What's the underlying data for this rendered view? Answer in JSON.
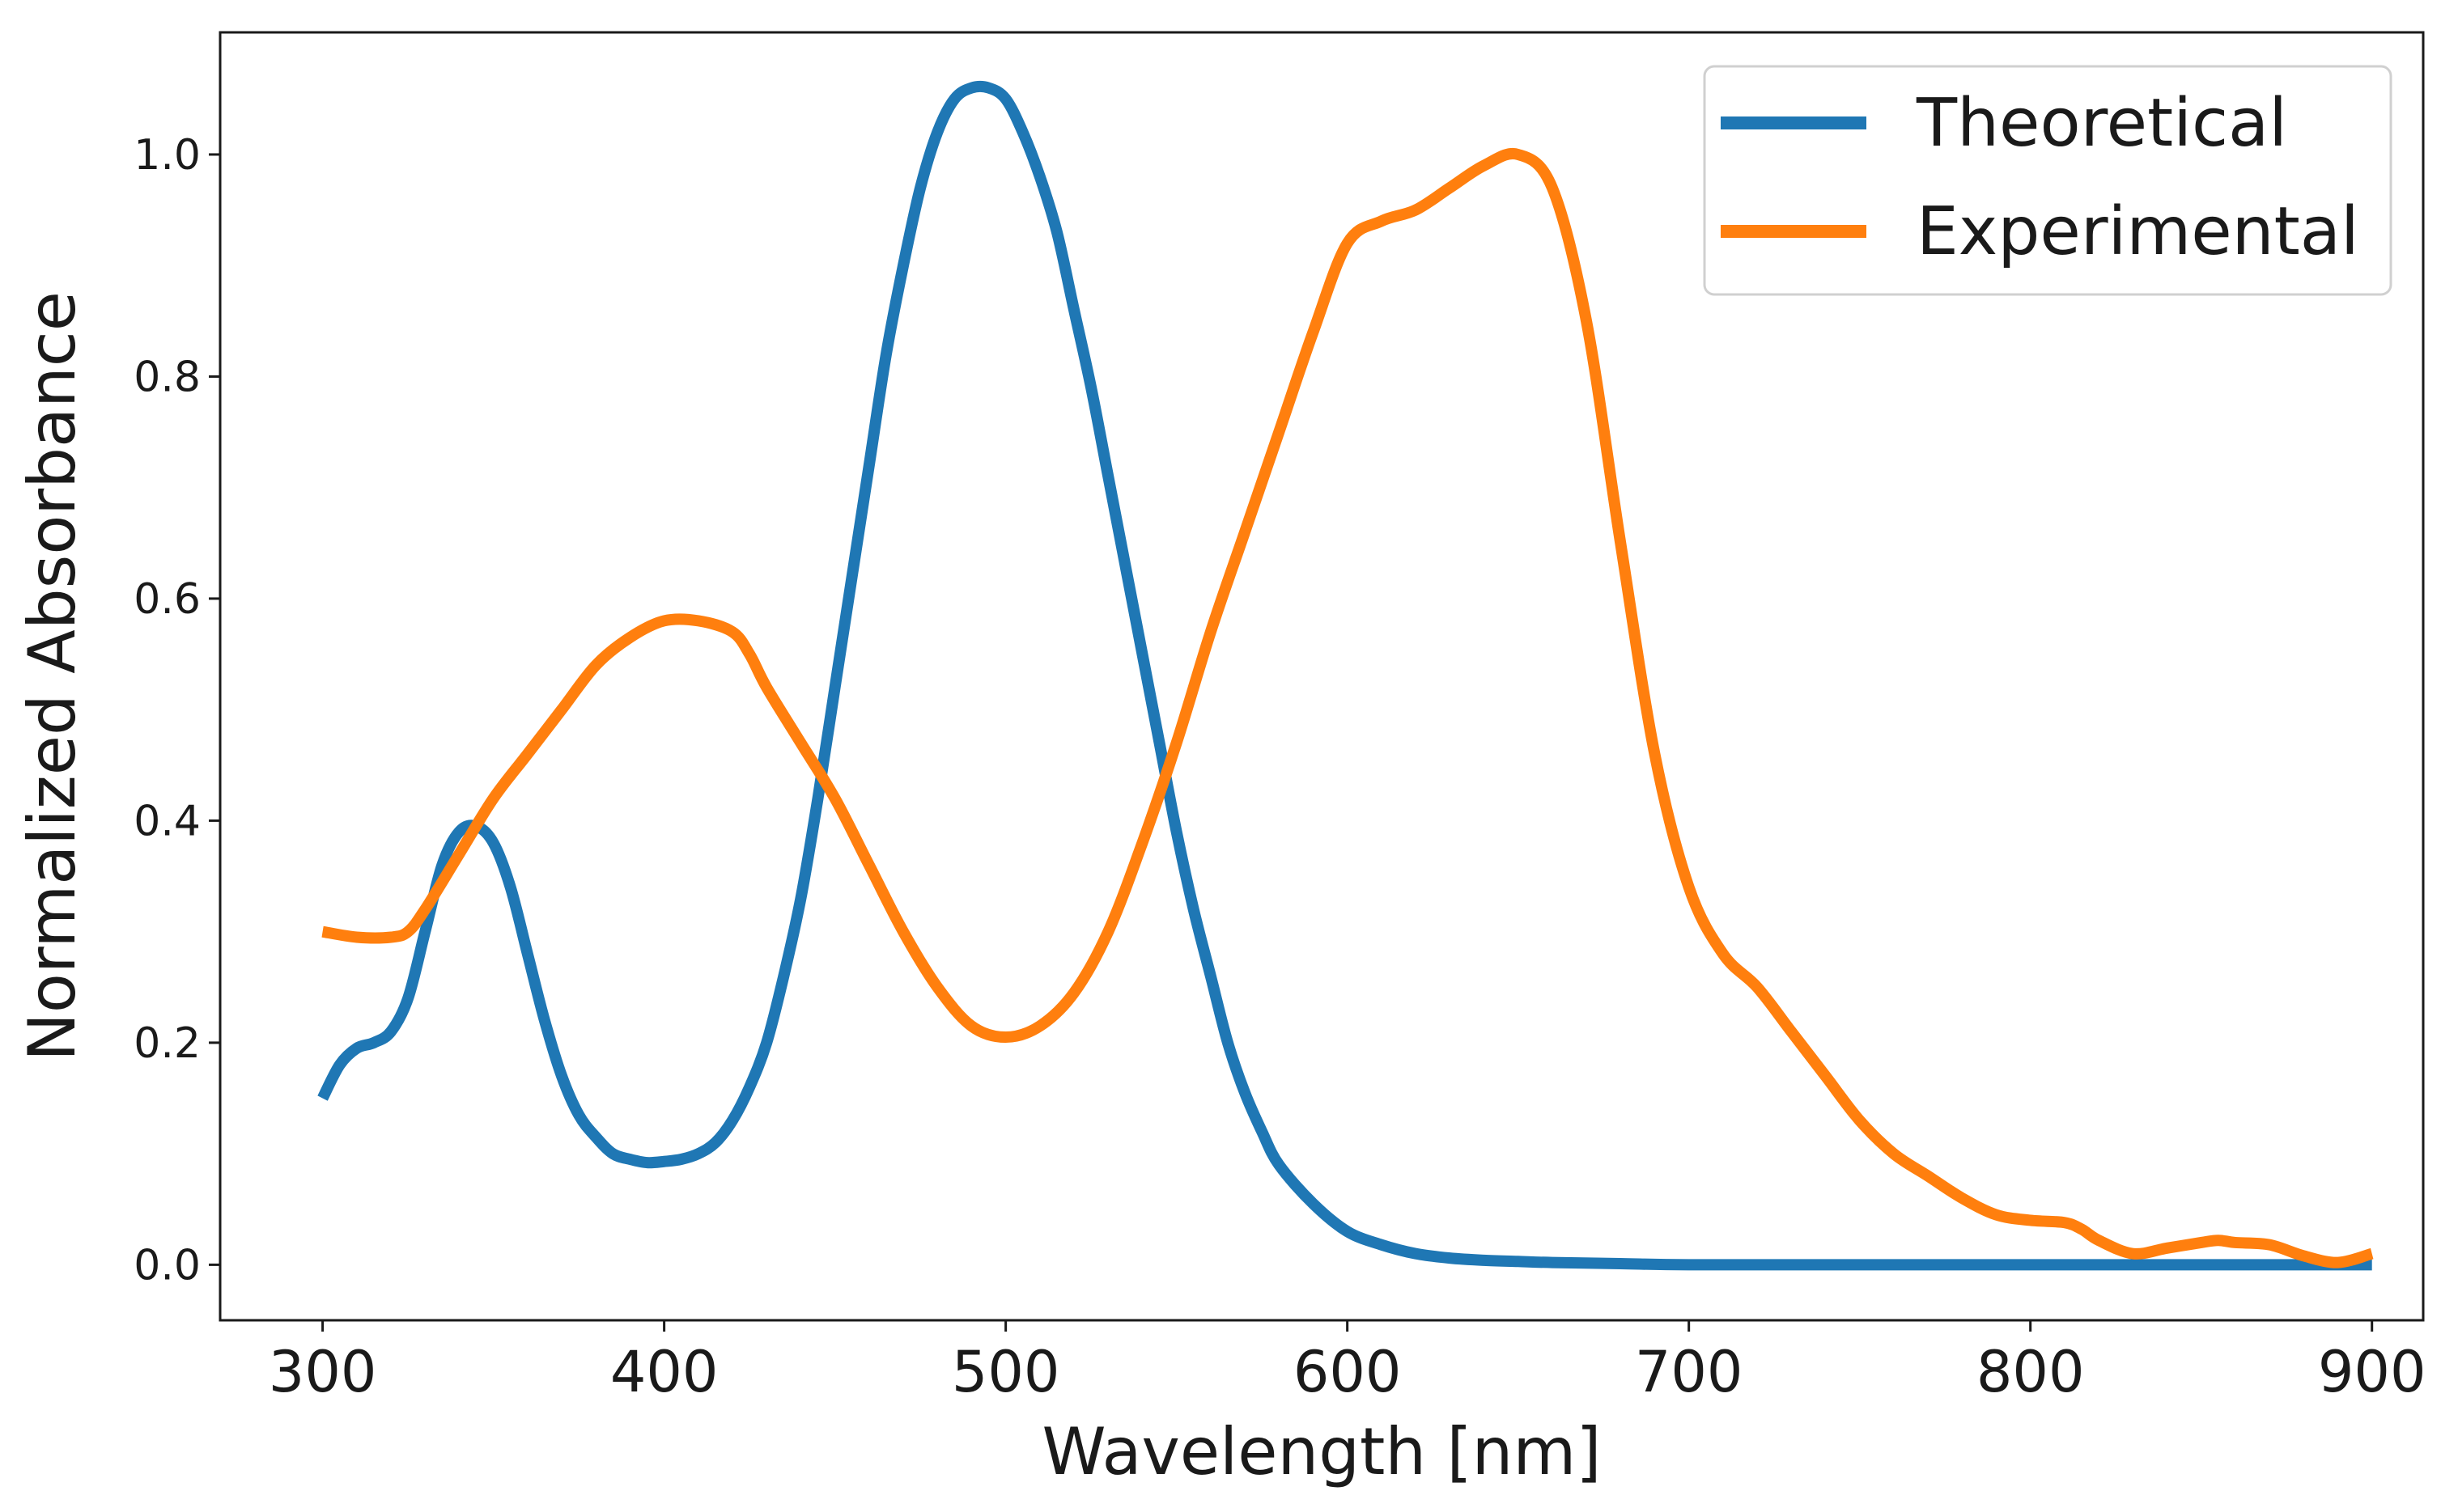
{
  "chart_data": {
    "type": "line",
    "title": "",
    "xlabel": "Wavelength [nm]",
    "ylabel": "Normalized Absorbance",
    "xlim": [
      270,
      915
    ],
    "ylim": [
      -0.05,
      1.11
    ],
    "x_ticks": [
      300,
      400,
      500,
      600,
      700,
      800,
      900
    ],
    "x_tick_labels": [
      "300",
      "400",
      "500",
      "600",
      "700",
      "800",
      "900"
    ],
    "y_ticks": [
      0.0,
      0.2,
      0.4,
      0.6,
      0.8,
      1.0
    ],
    "y_tick_labels": [
      "0.0",
      "0.2",
      "0.4",
      "0.6",
      "0.8",
      "1.0"
    ],
    "grid": false,
    "legend_position": "top-right",
    "series": [
      {
        "name": "Theoretical",
        "color": "#1f77b4",
        "x": [
          300,
          305,
          310,
          315,
          320,
          325,
          330,
          335,
          340,
          345,
          350,
          355,
          360,
          365,
          370,
          375,
          380,
          385,
          390,
          395,
          400,
          405,
          410,
          415,
          420,
          425,
          430,
          435,
          440,
          445,
          450,
          455,
          460,
          465,
          470,
          475,
          480,
          485,
          490,
          495,
          500,
          505,
          510,
          515,
          520,
          525,
          530,
          535,
          540,
          545,
          550,
          555,
          560,
          565,
          570,
          575,
          580,
          590,
          600,
          610,
          620,
          630,
          640,
          650,
          660,
          680,
          700,
          750,
          800,
          850,
          900
        ],
        "y": [
          0.15,
          0.18,
          0.195,
          0.2,
          0.21,
          0.24,
          0.3,
          0.36,
          0.39,
          0.395,
          0.38,
          0.34,
          0.28,
          0.22,
          0.17,
          0.135,
          0.115,
          0.1,
          0.095,
          0.092,
          0.093,
          0.095,
          0.1,
          0.11,
          0.13,
          0.16,
          0.2,
          0.26,
          0.33,
          0.42,
          0.52,
          0.62,
          0.72,
          0.82,
          0.9,
          0.97,
          1.02,
          1.05,
          1.06,
          1.06,
          1.05,
          1.02,
          0.98,
          0.93,
          0.86,
          0.79,
          0.71,
          0.63,
          0.55,
          0.47,
          0.39,
          0.32,
          0.26,
          0.2,
          0.155,
          0.12,
          0.09,
          0.055,
          0.03,
          0.018,
          0.01,
          0.006,
          0.004,
          0.003,
          0.002,
          0.001,
          0.0,
          0.0,
          0.0,
          0.0,
          0.0
        ]
      },
      {
        "name": "Experimental",
        "color": "#ff7f0e",
        "x": [
          300,
          310,
          320,
          325,
          330,
          340,
          350,
          360,
          370,
          380,
          390,
          400,
          410,
          420,
          425,
          430,
          440,
          450,
          460,
          470,
          480,
          490,
          500,
          510,
          520,
          530,
          540,
          550,
          560,
          570,
          580,
          590,
          600,
          610,
          620,
          630,
          640,
          650,
          660,
          670,
          680,
          690,
          700,
          710,
          720,
          730,
          740,
          750,
          760,
          770,
          780,
          790,
          800,
          810,
          815,
          820,
          830,
          840,
          850,
          855,
          860,
          870,
          880,
          890,
          900
        ],
        "y": [
          0.3,
          0.295,
          0.295,
          0.3,
          0.32,
          0.37,
          0.42,
          0.46,
          0.5,
          0.54,
          0.565,
          0.58,
          0.58,
          0.57,
          0.55,
          0.52,
          0.47,
          0.42,
          0.36,
          0.3,
          0.25,
          0.215,
          0.205,
          0.215,
          0.245,
          0.3,
          0.38,
          0.47,
          0.57,
          0.66,
          0.75,
          0.84,
          0.92,
          0.94,
          0.95,
          0.97,
          0.99,
          1.0,
          0.97,
          0.85,
          0.65,
          0.46,
          0.34,
          0.28,
          0.25,
          0.21,
          0.17,
          0.13,
          0.1,
          0.08,
          0.06,
          0.045,
          0.04,
          0.038,
          0.032,
          0.022,
          0.01,
          0.015,
          0.02,
          0.022,
          0.02,
          0.018,
          0.008,
          0.002,
          0.01
        ]
      }
    ]
  }
}
